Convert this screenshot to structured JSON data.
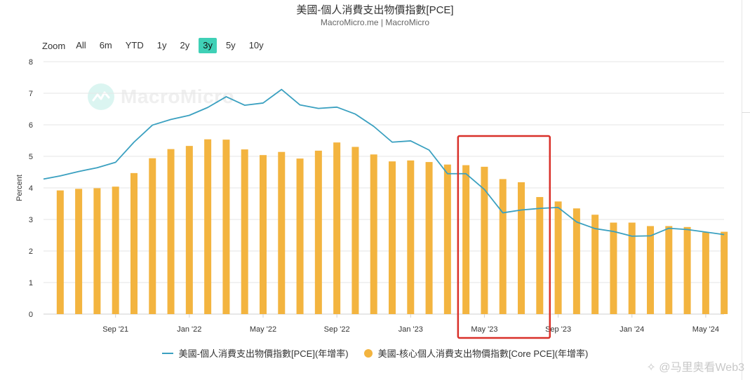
{
  "header": {
    "title": "美國-個人消費支出物價指數[PCE]",
    "subtitle": "MacroMicro.me | MacroMicro"
  },
  "range_selector": {
    "zoom_label": "Zoom",
    "buttons": [
      "All",
      "6m",
      "YTD",
      "1y",
      "2y",
      "3y",
      "5y",
      "10y"
    ],
    "active": "3y"
  },
  "watermark": {
    "logo_text": "MacroMicro",
    "corner_text": "@马里奥看Web3"
  },
  "colors": {
    "bar": "#f3b43f",
    "line": "#3aa0c0",
    "highlight_box": "#d9312a",
    "grid": "#e6e6e6"
  },
  "legend": {
    "line_label": "美國-個人消費支出物價指數[PCE](年增率)",
    "bar_label": "美國-核心個人消費支出物價指數[Core PCE](年增率)"
  },
  "chart_data": {
    "type": "bar",
    "ylabel": "Percent",
    "ylim": [
      0,
      8
    ],
    "yticks": [
      "0",
      "1",
      "2",
      "3",
      "4",
      "5",
      "6",
      "7",
      "8"
    ],
    "xtick_labels": [
      "Sep '21",
      "Jan '22",
      "May '22",
      "Sep '22",
      "Jan '23",
      "May '23",
      "Sep '23",
      "Jan '24",
      "May '24"
    ],
    "xtick_months": [
      "2021-09",
      "2022-01",
      "2022-05",
      "2022-09",
      "2023-01",
      "2023-05",
      "2023-09",
      "2024-01",
      "2024-05"
    ],
    "grid": true,
    "legend_position": "bottom",
    "months": [
      "2021-06",
      "2021-07",
      "2021-08",
      "2021-09",
      "2021-10",
      "2021-11",
      "2021-12",
      "2022-01",
      "2022-02",
      "2022-03",
      "2022-04",
      "2022-05",
      "2022-06",
      "2022-07",
      "2022-08",
      "2022-09",
      "2022-10",
      "2022-11",
      "2022-12",
      "2023-01",
      "2023-02",
      "2023-03",
      "2023-04",
      "2023-05",
      "2023-06",
      "2023-07",
      "2023-08",
      "2023-09",
      "2023-10",
      "2023-11",
      "2023-12",
      "2024-01",
      "2024-02",
      "2024-03",
      "2024-04",
      "2024-05",
      "2024-06"
    ],
    "series": [
      {
        "name": "美國-核心個人消費支出物價指數[Core PCE](年增率)",
        "type": "bar",
        "values": [
          3.92,
          3.97,
          3.99,
          4.04,
          4.47,
          4.94,
          5.23,
          5.33,
          5.54,
          5.53,
          5.22,
          5.04,
          5.14,
          4.93,
          5.18,
          5.44,
          5.3,
          5.06,
          4.84,
          4.87,
          4.82,
          4.74,
          4.72,
          4.67,
          4.28,
          4.18,
          3.71,
          3.57,
          3.35,
          3.15,
          2.9,
          2.9,
          2.79,
          2.79,
          2.76,
          2.59,
          2.61
        ]
      },
      {
        "name": "美國-個人消費支出物價指數[PCE](年增率)",
        "type": "line",
        "start_value": 4.28,
        "values": [
          4.38,
          4.52,
          4.64,
          4.81,
          5.45,
          5.99,
          6.17,
          6.3,
          6.55,
          6.89,
          6.62,
          6.69,
          7.12,
          6.63,
          6.52,
          6.56,
          6.34,
          5.95,
          5.45,
          5.49,
          5.2,
          4.45,
          4.45,
          3.95,
          3.21,
          3.3,
          3.35,
          3.38,
          2.92,
          2.71,
          2.62,
          2.47,
          2.48,
          2.72,
          2.68,
          2.6,
          2.52
        ]
      }
    ],
    "highlight_range": [
      "2023-04",
      "2023-08"
    ]
  }
}
